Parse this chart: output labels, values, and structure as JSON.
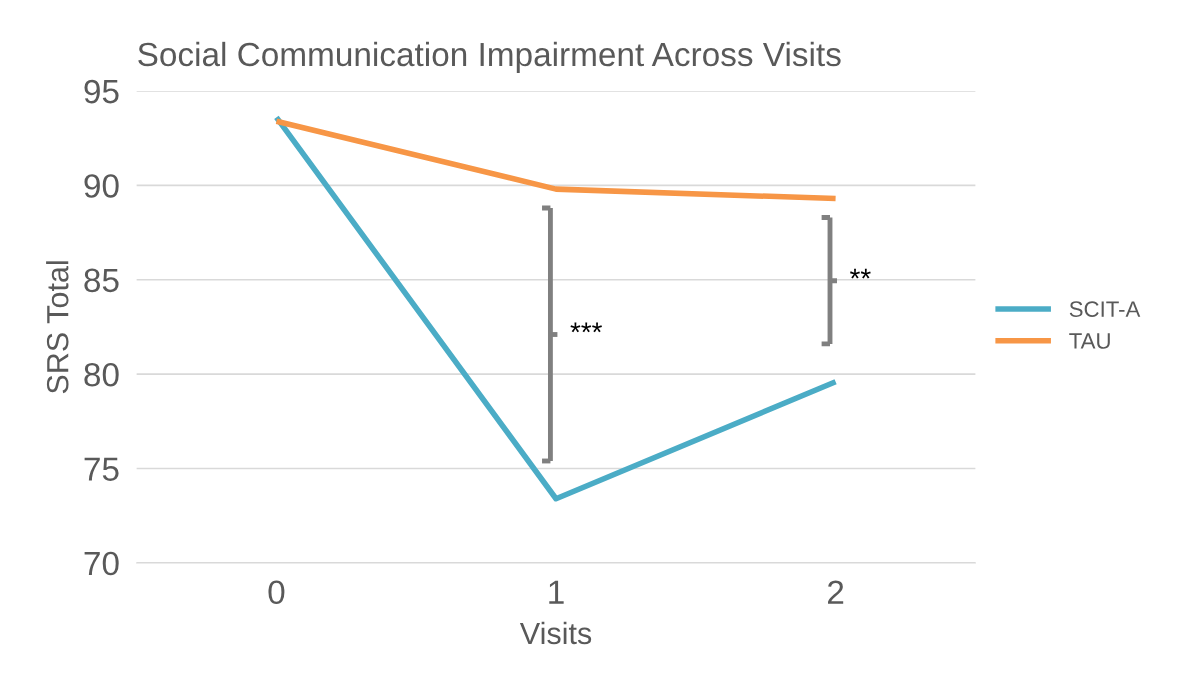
{
  "chart_data": {
    "type": "line",
    "title": "Social Communication Impairment Across Visits",
    "xlabel": "Visits",
    "ylabel": "SRS Total",
    "categories": [
      "0",
      "1",
      "2"
    ],
    "series": [
      {
        "name": "SCIT-A",
        "color": "#4bacc6",
        "values": [
          93.6,
          73.4,
          79.6
        ]
      },
      {
        "name": "TAU",
        "color": "#f79646",
        "values": [
          93.4,
          89.8,
          89.3
        ]
      }
    ],
    "ylim": [
      70,
      95
    ],
    "yticks": [
      70,
      75,
      80,
      85,
      90,
      95
    ],
    "grid": "y",
    "legend": "right",
    "marker": "none",
    "line_style": "solid",
    "annotations": [
      "***",
      "**"
    ]
  }
}
